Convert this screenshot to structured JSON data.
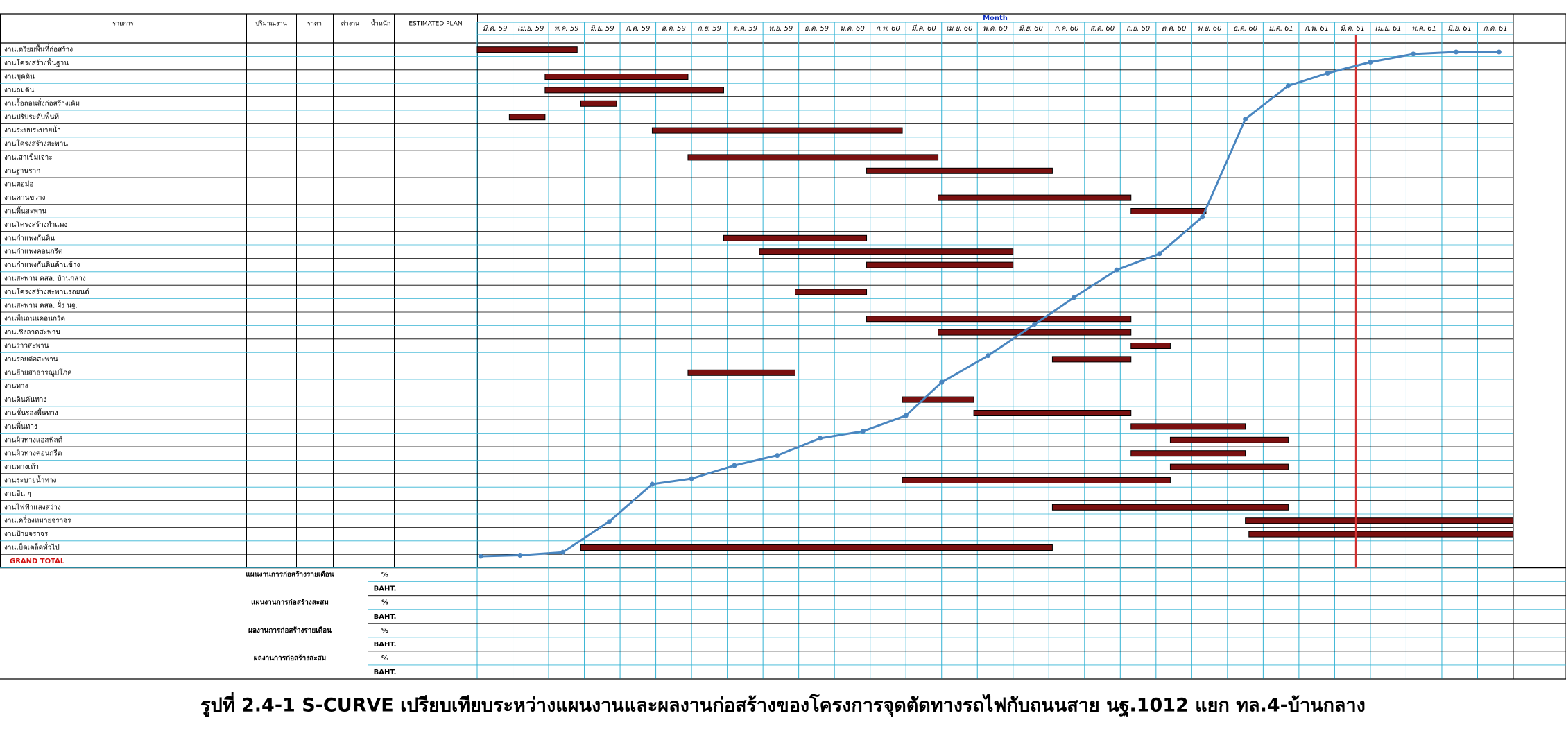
{
  "caption": "รูปที่ 2.4-1 S-CURVE เปรียบเทียบระหว่างแผนงานและผลงานก่อสร้างของโครงการจุดตัดทางรถไฟกับถนนสาย นฐ.1012 แยก ทล.4-บ้านกลาง",
  "table_headers": [
    "รายการ",
    "ปริมาณงาน",
    "ราคา",
    "ค่างาน",
    "น้ำหนัก",
    "ESTIMATED PLAN"
  ],
  "chart_data": {
    "type": "gantt",
    "title": "Month",
    "categories": [
      "มี.ค. 59",
      "เม.ย. 59",
      "พ.ค. 59",
      "มิ.ย. 59",
      "ก.ค. 59",
      "ส.ค. 59",
      "ก.ย. 59",
      "ต.ค. 59",
      "พ.ย. 59",
      "ธ.ค. 59",
      "ม.ค. 60",
      "ก.พ. 60",
      "มี.ค. 60",
      "เม.ย. 60",
      "พ.ค. 60",
      "มิ.ย. 60",
      "ก.ค. 60",
      "ส.ค. 60",
      "ก.ย. 60",
      "ต.ค. 60",
      "พ.ย. 60",
      "ธ.ค. 60",
      "ม.ค. 61",
      "ก.พ. 61",
      "มี.ค. 61",
      "เม.ย. 61",
      "พ.ค. 61",
      "มิ.ย. 61",
      "ก.ค. 61"
    ],
    "xlim": [
      0,
      29
    ],
    "ylim": [
      0,
      100
    ],
    "bar_color": "#7a1010",
    "curve_color": "#4a86c0",
    "current_month": 24.6,
    "current_color": "#d03030",
    "tasks": [
      {
        "name": "งานเตรียมพื้นที่ก่อสร้าง",
        "start": 0,
        "end": 2.8
      },
      {
        "name": "งานโครงสร้างพื้นฐาน"
      },
      {
        "name": "งานขุดดิน",
        "start": 1.9,
        "end": 5.9
      },
      {
        "name": "งานถมดิน",
        "start": 1.9,
        "end": 6.9
      },
      {
        "name": "งานรื้อถอนสิ่งก่อสร้างเดิม",
        "start": 2.9,
        "end": 3.9
      },
      {
        "name": "งานปรับระดับพื้นที่",
        "start": 0.9,
        "end": 1.9
      },
      {
        "name": "งานระบบระบายน้ำ",
        "start": 4.9,
        "end": 11.9
      },
      {
        "name": "งานโครงสร้างสะพาน"
      },
      {
        "name": "งานเสาเข็มเจาะ",
        "start": 5.9,
        "end": 12.9
      },
      {
        "name": "งานฐานราก",
        "start": 10.9,
        "end": 16.1
      },
      {
        "name": "งานตอม่อ"
      },
      {
        "name": "งานคานขวาง",
        "start": 12.9,
        "end": 18.3
      },
      {
        "name": "งานพื้นสะพาน",
        "start": 18.3,
        "end": 20.4
      },
      {
        "name": "งานโครงสร้างกำแพง"
      },
      {
        "name": "งานกำแพงกันดิน",
        "start": 6.9,
        "end": 10.9
      },
      {
        "name": "งานกำแพงคอนกรีต",
        "start": 7.9,
        "end": 15
      },
      {
        "name": "งานกำแพงกันดินด้านข้าง",
        "start": 10.9,
        "end": 15
      },
      {
        "name": "งานสะพาน คสล. บ้านกลาง"
      },
      {
        "name": "งานโครงสร้างสะพานรถยนต์",
        "start": 8.9,
        "end": 10.9
      },
      {
        "name": "งานสะพาน คสล. ฝั่ง นฐ."
      },
      {
        "name": "งานพื้นถนนคอนกรีต",
        "start": 10.9,
        "end": 18.3
      },
      {
        "name": "งานเชิงลาดสะพาน",
        "start": 12.9,
        "end": 18.3
      },
      {
        "name": "งานราวสะพาน",
        "start": 18.3,
        "end": 19.4
      },
      {
        "name": "งานรอยต่อสะพาน",
        "start": 16.1,
        "end": 18.3
      },
      {
        "name": "งานย้ายสาธารณูปโภค",
        "start": 5.9,
        "end": 8.9
      },
      {
        "name": "งานทาง"
      },
      {
        "name": "งานดินคันทาง",
        "start": 11.9,
        "end": 13.9
      },
      {
        "name": "งานชั้นรองพื้นทาง",
        "start": 13.9,
        "end": 18.3
      },
      {
        "name": "งานพื้นทาง",
        "start": 18.3,
        "end": 21.5
      },
      {
        "name": "งานผิวทางแอสฟัลต์",
        "start": 19.4,
        "end": 22.7
      },
      {
        "name": "งานผิวทางคอนกรีต",
        "start": 18.3,
        "end": 21.5
      },
      {
        "name": "งานทางเท้า",
        "start": 19.4,
        "end": 22.7
      },
      {
        "name": "งานระบายน้ำทาง",
        "start": 11.9,
        "end": 19.4
      },
      {
        "name": "งานอื่น ๆ"
      },
      {
        "name": "งานไฟฟ้าแสงสว่าง",
        "start": 16.1,
        "end": 22.7
      },
      {
        "name": "งานเครื่องหมายจราจร",
        "start": 21.5,
        "end": 29
      },
      {
        "name": "งานป้ายจราจร",
        "start": 21.6,
        "end": 29
      },
      {
        "name": "งานเบ็ดเตล็ดทั่วไป",
        "start": 2.9,
        "end": 16.1
      },
      {
        "name": "GRAND TOTAL"
      }
    ],
    "s_curve": {
      "x": [
        0.1,
        1.2,
        2.4,
        3.7,
        4.9,
        6.0,
        7.2,
        8.4,
        9.6,
        10.8,
        12.0,
        13.0,
        14.3,
        15.6,
        16.7,
        17.9,
        19.1,
        20.3,
        21.5,
        22.7,
        23.8,
        25.0,
        26.2,
        27.4,
        28.6
      ],
      "values": [
        0,
        0.2,
        0.8,
        6.9,
        14.3,
        15.4,
        18.0,
        20.0,
        23.4,
        24.8,
        27.9,
        34.5,
        39.8,
        46.0,
        51.3,
        56.8,
        60.0,
        67.3,
        86.7,
        93.3,
        95.8,
        98.0,
        99.6,
        100,
        100
      ]
    },
    "summary_rows": [
      {
        "name": "แผนงานการก่อสร้างรายเดือน",
        "units": [
          "%",
          "BAHT."
        ]
      },
      {
        "name": "แผนงานการก่อสร้างสะสม",
        "units": [
          "%",
          "BAHT."
        ]
      },
      {
        "name": "ผลงานการก่อสร้างรายเดือน",
        "units": [
          "%",
          "BAHT."
        ]
      },
      {
        "name": "ผลงานการก่อสร้างสะสม",
        "units": [
          "%",
          "BAHT."
        ]
      }
    ]
  }
}
